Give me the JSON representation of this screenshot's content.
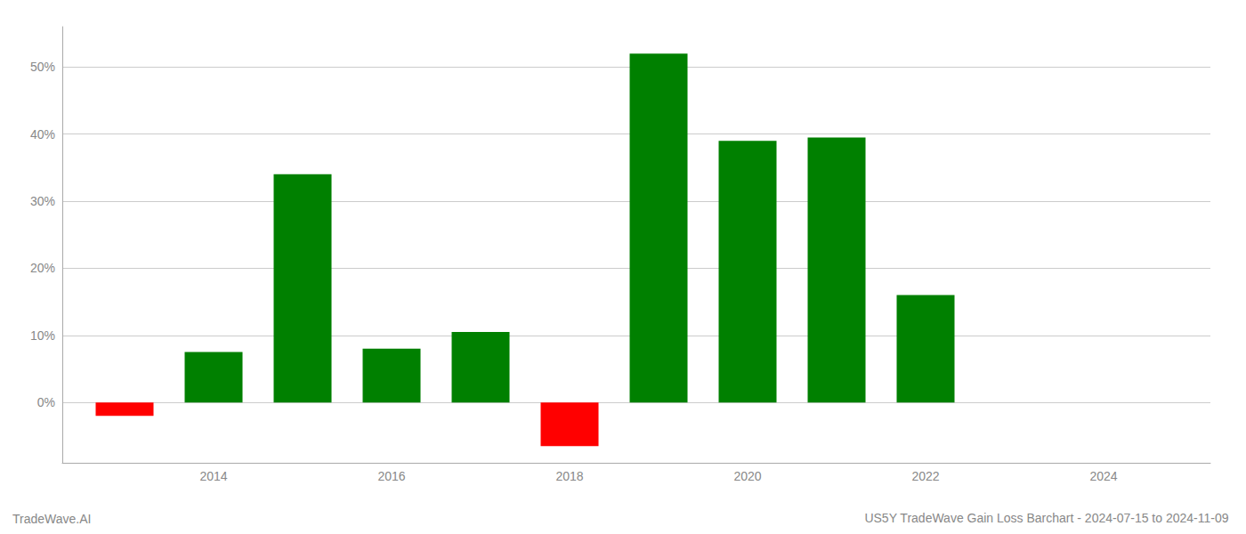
{
  "chart_data": {
    "type": "bar",
    "title": "US5Y TradeWave Gain Loss Barchart - 2024-07-15 to 2024-11-09",
    "annotations": [
      "TradeWave.AI"
    ],
    "x": [
      2013,
      2014,
      2015,
      2016,
      2017,
      2018,
      2019,
      2020,
      2021,
      2022,
      2023
    ],
    "values": [
      -2.0,
      7.5,
      34.0,
      8.0,
      10.5,
      -6.5,
      52.0,
      39.0,
      39.5,
      16.0,
      0.0
    ],
    "colors": [
      "#ff0000",
      "#008000",
      "#008000",
      "#008000",
      "#008000",
      "#ff0000",
      "#008000",
      "#008000",
      "#008000",
      "#008000",
      "#008000"
    ],
    "xlim": [
      2012.3,
      2025.2
    ],
    "xticks": [
      2014,
      2016,
      2018,
      2020,
      2022,
      2024
    ],
    "ylim": [
      -9,
      56
    ],
    "yticks": [
      {
        "value": 0,
        "label": "0%"
      },
      {
        "value": 10,
        "label": "10%"
      },
      {
        "value": 20,
        "label": "20%"
      },
      {
        "value": 30,
        "label": "30%"
      },
      {
        "value": 40,
        "label": "40%"
      },
      {
        "value": 50,
        "label": "50%"
      }
    ],
    "grid": true
  }
}
